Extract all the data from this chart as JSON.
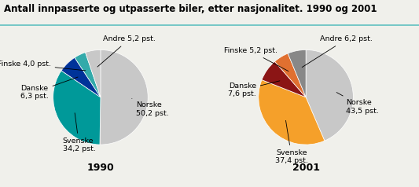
{
  "title": "Antall innpasserte og utpasserte biler, etter nasjonalitet. 1990 og 2001",
  "pie1": {
    "year": "1990",
    "values": [
      50.2,
      34.2,
      6.3,
      4.0,
      5.2
    ],
    "colors": [
      "#c8c8c8",
      "#009999",
      "#003399",
      "#33aaaa",
      "#c8c8c8"
    ],
    "startangle": 90,
    "counterclock": false
  },
  "pie2": {
    "year": "2001",
    "values": [
      43.5,
      37.4,
      7.6,
      5.2,
      6.2
    ],
    "colors": [
      "#c8c8c8",
      "#f5a02a",
      "#8b1515",
      "#e07030",
      "#888888"
    ],
    "startangle": 90,
    "counterclock": false
  },
  "background_color": "#f0f0eb",
  "title_fontsize": 8.5,
  "label_fontsize": 6.8
}
